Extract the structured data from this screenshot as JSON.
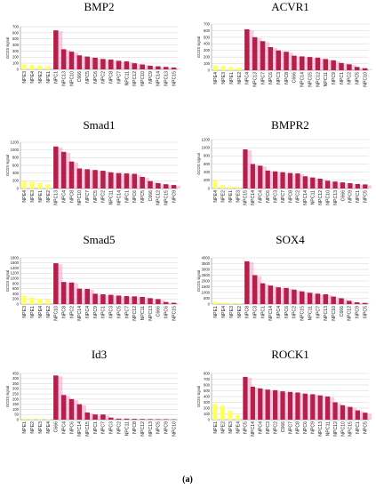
{
  "figure_label": "(a)",
  "colors": {
    "yellow": "#ffff66",
    "red": "#b0224a",
    "pink_glow": "#ff9ad0",
    "grid": "#c8c8c8"
  },
  "chart_data": [
    {
      "type": "bar",
      "title": "BMP2",
      "ylabel": "GCOS signal",
      "yticks": [
        0,
        100,
        200,
        300,
        400,
        500,
        600,
        700
      ],
      "ylim": [
        0,
        700
      ],
      "categories": [
        "NPE3",
        "NPE4",
        "NPE2",
        "NPE1",
        "NPC1",
        "NPC13",
        "NPC10",
        "C666",
        "NPC5",
        "NPC6",
        "NPC2",
        "NPC8",
        "NPC7",
        "NPC11",
        "NPC12",
        "NPC10",
        "NPC9",
        "NPC14",
        "NPC13",
        "NPC15"
      ],
      "values": [
        80,
        70,
        60,
        50,
        640,
        330,
        290,
        230,
        210,
        190,
        170,
        160,
        140,
        130,
        100,
        80,
        60,
        50,
        40,
        30
      ],
      "colors": [
        "y",
        "y",
        "y",
        "y",
        "r",
        "r",
        "r",
        "r",
        "r",
        "r",
        "r",
        "r",
        "r",
        "r",
        "r",
        "r",
        "r",
        "r",
        "r",
        "r"
      ]
    },
    {
      "type": "bar",
      "title": "ACVR1",
      "ylabel": "GCOS signal",
      "yticks": [
        0,
        100,
        200,
        300,
        400,
        500,
        600,
        700
      ],
      "ylim": [
        0,
        700
      ],
      "categories": [
        "NPE4",
        "NPE3",
        "NPE1",
        "NPE2",
        "NPC4",
        "NPC13",
        "NPC7",
        "NPC6",
        "NPC3",
        "NPC8",
        "C666",
        "NPC14",
        "NPC15",
        "NPC12",
        "NPC11",
        "NPC9",
        "NPC1",
        "NPC2",
        "NPC5",
        "NPC10"
      ],
      "values": [
        70,
        60,
        50,
        40,
        620,
        500,
        440,
        350,
        300,
        280,
        220,
        210,
        200,
        190,
        170,
        150,
        110,
        90,
        50,
        30
      ],
      "colors": [
        "y",
        "y",
        "y",
        "y",
        "r",
        "r",
        "r",
        "r",
        "r",
        "r",
        "r",
        "r",
        "r",
        "r",
        "r",
        "r",
        "r",
        "r",
        "r",
        "r"
      ]
    },
    {
      "type": "bar",
      "title": "Smad1",
      "ylabel": "GCOS signal",
      "yticks": [
        0,
        200,
        400,
        600,
        800,
        1000,
        1200
      ],
      "ylim": [
        0,
        1200
      ],
      "categories": [
        "NPE4",
        "NPE3",
        "NPE1",
        "NPE2",
        "NPC13",
        "NPC4",
        "NPC8",
        "NPC10",
        "NPC7",
        "NPC5",
        "NPC2",
        "NPC11",
        "NPC14",
        "NPC1",
        "NPC6",
        "NPC5",
        "C666",
        "NPC12",
        "NPC15",
        "NPC9"
      ],
      "values": [
        190,
        170,
        140,
        110,
        1090,
        950,
        700,
        520,
        500,
        480,
        460,
        420,
        400,
        390,
        380,
        300,
        190,
        140,
        110,
        90
      ],
      "colors": [
        "y",
        "y",
        "y",
        "y",
        "r",
        "r",
        "r",
        "r",
        "r",
        "r",
        "r",
        "r",
        "r",
        "r",
        "r",
        "r",
        "r",
        "r",
        "r",
        "r"
      ]
    },
    {
      "type": "bar",
      "title": "BMPR2",
      "ylabel": "GCOS signal",
      "yticks": [
        0,
        200,
        400,
        600,
        800,
        1000,
        1200
      ],
      "ylim": [
        0,
        1200
      ],
      "categories": [
        "NPE4",
        "NPE2",
        "NPE1",
        "NPE3",
        "NPC15",
        "NPC14",
        "NPC4",
        "NPC6",
        "NPC3",
        "NPC7",
        "NPC8",
        "NPC2",
        "NPC14",
        "NPC11",
        "NPC12",
        "NPC10",
        "NPC13",
        "C666",
        "NPC9",
        "NPC1",
        "NPC5"
      ],
      "values": [
        200,
        80,
        50,
        40,
        960,
        600,
        560,
        440,
        420,
        400,
        380,
        370,
        300,
        270,
        240,
        190,
        170,
        150,
        130,
        110,
        100
      ],
      "colors": [
        "y",
        "y",
        "y",
        "y",
        "r",
        "r",
        "r",
        "r",
        "r",
        "r",
        "r",
        "r",
        "r",
        "r",
        "r",
        "r",
        "r",
        "r",
        "r",
        "r",
        "r"
      ]
    },
    {
      "type": "bar",
      "title": "Smad5",
      "ylabel": "GCOS signal",
      "yticks": [
        0,
        200,
        400,
        600,
        800,
        1000,
        1200,
        1400,
        1600,
        1800
      ],
      "ylim": [
        0,
        1800
      ],
      "categories": [
        "NPE3",
        "NPE1",
        "NPE4",
        "NPE2",
        "NPC10",
        "NPC8",
        "NPC2",
        "NPC14",
        "NPC4",
        "NPC9",
        "NPC1",
        "NPC3",
        "NPC5",
        "NPC7",
        "NPC12",
        "NPC11",
        "NPC13",
        "C666",
        "NPC6",
        "NPC15"
      ],
      "values": [
        320,
        260,
        210,
        170,
        1590,
        860,
        840,
        600,
        590,
        400,
        380,
        360,
        330,
        310,
        300,
        280,
        230,
        190,
        80,
        50
      ],
      "colors": [
        "y",
        "y",
        "y",
        "y",
        "r",
        "r",
        "r",
        "r",
        "r",
        "r",
        "r",
        "r",
        "r",
        "r",
        "r",
        "r",
        "r",
        "r",
        "r",
        "r"
      ]
    },
    {
      "type": "bar",
      "title": "SOX4",
      "ylabel": "GCOS signal",
      "yticks": [
        0,
        500,
        1000,
        1500,
        2000,
        2500,
        3000,
        3500,
        4000
      ],
      "ylim": [
        0,
        4000
      ],
      "categories": [
        "NPE1",
        "NPE4",
        "NPE3",
        "NPE2",
        "NPC8",
        "NPC3",
        "NPC1",
        "NPC14",
        "NPC4",
        "NPC6",
        "NPC2",
        "NPC15",
        "NPC11",
        "NPC7",
        "NPC13",
        "NPC10",
        "C666",
        "NPC12",
        "NPC9",
        "NPC5"
      ],
      "values": [
        200,
        120,
        100,
        80,
        3700,
        2500,
        1800,
        1600,
        1450,
        1400,
        1250,
        1100,
        980,
        900,
        850,
        650,
        500,
        280,
        150,
        100
      ],
      "colors": [
        "y",
        "y",
        "y",
        "y",
        "r",
        "r",
        "r",
        "r",
        "r",
        "r",
        "r",
        "r",
        "r",
        "r",
        "r",
        "r",
        "r",
        "r",
        "r",
        "r"
      ]
    },
    {
      "type": "bar",
      "title": "Id3",
      "ylabel": "GCOS signal",
      "yticks": [
        0,
        50,
        100,
        150,
        200,
        250,
        300,
        350,
        400,
        450
      ],
      "ylim": [
        0,
        450
      ],
      "categories": [
        "NPE1",
        "NPE2",
        "NPE3",
        "NPE4",
        "C666",
        "NPC4",
        "NPC6",
        "NPC14",
        "NPC15",
        "NPC1",
        "NPC7",
        "NPC3",
        "NPC2",
        "NPC11",
        "NPC8",
        "NPC12",
        "NPC13",
        "NPC5",
        "NPC9",
        "NPC10"
      ],
      "values": [
        15,
        10,
        8,
        6,
        430,
        240,
        200,
        150,
        70,
        50,
        50,
        20,
        10,
        10,
        8,
        7,
        6,
        5,
        5,
        4
      ],
      "colors": [
        "y",
        "y",
        "y",
        "y",
        "r",
        "r",
        "r",
        "r",
        "r",
        "r",
        "r",
        "r",
        "r",
        "r",
        "r",
        "r",
        "r",
        "r",
        "r",
        "r"
      ]
    },
    {
      "type": "bar",
      "title": "ROCK1",
      "ylabel": "GCOS signal",
      "yticks": [
        0,
        100,
        200,
        300,
        400,
        500,
        600,
        700,
        800
      ],
      "ylim": [
        0,
        800
      ],
      "categories": [
        "NPE1",
        "NPE2",
        "NPE3",
        "NPE4",
        "NPC5",
        "NPC14",
        "NPC4",
        "NPC3",
        "NPC2",
        "C666",
        "NPC7",
        "NPC8",
        "NPC6",
        "NPC9",
        "NPC13",
        "NPC11",
        "NPC12",
        "NPC10",
        "NPC15",
        "NPC1",
        "NPC5"
      ],
      "values": [
        270,
        240,
        150,
        80,
        740,
        570,
        540,
        520,
        510,
        490,
        480,
        470,
        450,
        440,
        420,
        400,
        300,
        250,
        220,
        160,
        120
      ],
      "colors": [
        "y",
        "y",
        "y",
        "y",
        "r",
        "r",
        "r",
        "r",
        "r",
        "r",
        "r",
        "r",
        "r",
        "r",
        "r",
        "r",
        "r",
        "r",
        "r",
        "r",
        "r"
      ]
    }
  ]
}
